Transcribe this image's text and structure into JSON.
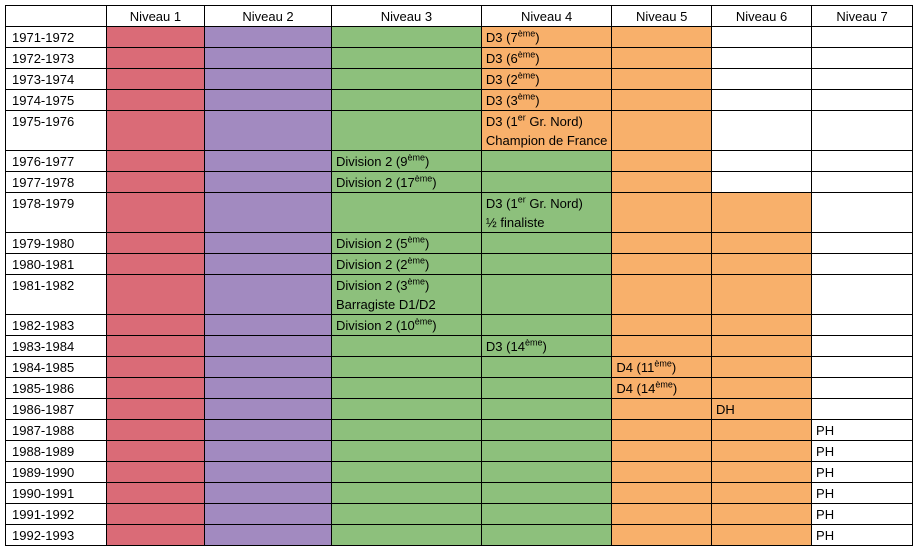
{
  "colors": {
    "niveau_1": "#DA6B77",
    "niveau_2": "#A28AC0",
    "niveau_3": "#8DC07C",
    "niveau_4": "#F8B06B",
    "empty": "#FFFFFF"
  },
  "headers": [
    "",
    "Niveau 1",
    "Niveau 2",
    "Niveau 3",
    "Niveau 4",
    "Niveau 5",
    "Niveau 6",
    "Niveau 7"
  ],
  "rows": [
    {
      "season": "1971-1972",
      "colors": [
        "niveau_1",
        "niveau_2",
        "niveau_3",
        "niveau_4",
        "niveau_4",
        "empty",
        "empty"
      ],
      "entry": {
        "col": 3,
        "lines": [
          {
            "text": "D3 (7",
            "sup": "ème",
            "after": ")"
          }
        ]
      }
    },
    {
      "season": "1972-1973",
      "colors": [
        "niveau_1",
        "niveau_2",
        "niveau_3",
        "niveau_4",
        "niveau_4",
        "empty",
        "empty"
      ],
      "entry": {
        "col": 3,
        "lines": [
          {
            "text": "D3 (6",
            "sup": "ème",
            "after": ")"
          }
        ]
      }
    },
    {
      "season": "1973-1974",
      "colors": [
        "niveau_1",
        "niveau_2",
        "niveau_3",
        "niveau_4",
        "niveau_4",
        "empty",
        "empty"
      ],
      "entry": {
        "col": 3,
        "lines": [
          {
            "text": "D3 (2",
            "sup": "ème",
            "after": ")"
          }
        ]
      }
    },
    {
      "season": "1974-1975",
      "colors": [
        "niveau_1",
        "niveau_2",
        "niveau_3",
        "niveau_4",
        "niveau_4",
        "empty",
        "empty"
      ],
      "entry": {
        "col": 3,
        "lines": [
          {
            "text": "D3 (3",
            "sup": "ème",
            "after": ")"
          }
        ]
      }
    },
    {
      "season": "1975-1976",
      "colors": [
        "niveau_1",
        "niveau_2",
        "niveau_3",
        "niveau_4",
        "niveau_4",
        "empty",
        "empty"
      ],
      "entry": {
        "col": 3,
        "lines": [
          {
            "text": "D3 (1",
            "sup": "er",
            "after": " Gr. Nord)"
          },
          {
            "text": "Champion de France",
            "sup": "",
            "after": ""
          }
        ]
      }
    },
    {
      "season": "1976-1977",
      "colors": [
        "niveau_1",
        "niveau_2",
        "niveau_3",
        "niveau_3",
        "niveau_4",
        "empty",
        "empty"
      ],
      "entry": {
        "col": 2,
        "lines": [
          {
            "text": "Division 2 (9",
            "sup": "ème",
            "after": ")"
          }
        ]
      }
    },
    {
      "season": "1977-1978",
      "colors": [
        "niveau_1",
        "niveau_2",
        "niveau_3",
        "niveau_3",
        "niveau_4",
        "empty",
        "empty"
      ],
      "entry": {
        "col": 2,
        "lines": [
          {
            "text": "Division 2 (17",
            "sup": "ème",
            "after": ")"
          }
        ]
      }
    },
    {
      "season": "1978-1979",
      "colors": [
        "niveau_1",
        "niveau_2",
        "niveau_3",
        "niveau_3",
        "niveau_4",
        "niveau_4",
        "empty"
      ],
      "entry": {
        "col": 3,
        "lines": [
          {
            "text": "D3 (1",
            "sup": "er",
            "after": " Gr. Nord)"
          },
          {
            "text": "½ finaliste",
            "sup": "",
            "after": ""
          }
        ]
      }
    },
    {
      "season": "1979-1980",
      "colors": [
        "niveau_1",
        "niveau_2",
        "niveau_3",
        "niveau_3",
        "niveau_4",
        "niveau_4",
        "empty"
      ],
      "entry": {
        "col": 2,
        "lines": [
          {
            "text": "Division 2 (5",
            "sup": "ème",
            "after": ")"
          }
        ]
      }
    },
    {
      "season": "1980-1981",
      "colors": [
        "niveau_1",
        "niveau_2",
        "niveau_3",
        "niveau_3",
        "niveau_4",
        "niveau_4",
        "empty"
      ],
      "entry": {
        "col": 2,
        "lines": [
          {
            "text": "Division 2 (2",
            "sup": "ème",
            "after": ")"
          }
        ]
      }
    },
    {
      "season": "1981-1982",
      "colors": [
        "niveau_1",
        "niveau_2",
        "niveau_3",
        "niveau_3",
        "niveau_4",
        "niveau_4",
        "empty"
      ],
      "entry": {
        "col": 2,
        "lines": [
          {
            "text": "Division 2 (3",
            "sup": "ème",
            "after": ")"
          },
          {
            "text": "Barragiste D1/D2",
            "sup": "",
            "after": ""
          }
        ]
      }
    },
    {
      "season": "1982-1983",
      "colors": [
        "niveau_1",
        "niveau_2",
        "niveau_3",
        "niveau_3",
        "niveau_4",
        "niveau_4",
        "empty"
      ],
      "entry": {
        "col": 2,
        "lines": [
          {
            "text": "Division 2 (10",
            "sup": "ème",
            "after": ")"
          }
        ]
      }
    },
    {
      "season": "1983-1984",
      "colors": [
        "niveau_1",
        "niveau_2",
        "niveau_3",
        "niveau_3",
        "niveau_4",
        "niveau_4",
        "empty"
      ],
      "entry": {
        "col": 3,
        "lines": [
          {
            "text": "D3 (14",
            "sup": "ème",
            "after": ")"
          }
        ]
      }
    },
    {
      "season": "1984-1985",
      "colors": [
        "niveau_1",
        "niveau_2",
        "niveau_3",
        "niveau_3",
        "niveau_4",
        "niveau_4",
        "empty"
      ],
      "entry": {
        "col": 4,
        "lines": [
          {
            "text": "D4 (11",
            "sup": "ème",
            "after": ")"
          }
        ]
      }
    },
    {
      "season": "1985-1986",
      "colors": [
        "niveau_1",
        "niveau_2",
        "niveau_3",
        "niveau_3",
        "niveau_4",
        "niveau_4",
        "empty"
      ],
      "entry": {
        "col": 4,
        "lines": [
          {
            "text": "D4 (14",
            "sup": "ème",
            "after": ")"
          }
        ]
      }
    },
    {
      "season": "1986-1987",
      "colors": [
        "niveau_1",
        "niveau_2",
        "niveau_3",
        "niveau_3",
        "niveau_4",
        "niveau_4",
        "empty"
      ],
      "entry": {
        "col": 5,
        "lines": [
          {
            "text": "DH",
            "sup": "",
            "after": ""
          }
        ]
      }
    },
    {
      "season": "1987-1988",
      "colors": [
        "niveau_1",
        "niveau_2",
        "niveau_3",
        "niveau_3",
        "niveau_4",
        "niveau_4",
        "empty"
      ],
      "entry": {
        "col": 6,
        "lines": [
          {
            "text": "PH",
            "sup": "",
            "after": ""
          }
        ]
      }
    },
    {
      "season": "1988-1989",
      "colors": [
        "niveau_1",
        "niveau_2",
        "niveau_3",
        "niveau_3",
        "niveau_4",
        "niveau_4",
        "empty"
      ],
      "entry": {
        "col": 6,
        "lines": [
          {
            "text": "PH",
            "sup": "",
            "after": ""
          }
        ]
      }
    },
    {
      "season": "1989-1990",
      "colors": [
        "niveau_1",
        "niveau_2",
        "niveau_3",
        "niveau_3",
        "niveau_4",
        "niveau_4",
        "empty"
      ],
      "entry": {
        "col": 6,
        "lines": [
          {
            "text": "PH",
            "sup": "",
            "after": ""
          }
        ]
      }
    },
    {
      "season": "1990-1991",
      "colors": [
        "niveau_1",
        "niveau_2",
        "niveau_3",
        "niveau_3",
        "niveau_4",
        "niveau_4",
        "empty"
      ],
      "entry": {
        "col": 6,
        "lines": [
          {
            "text": "PH",
            "sup": "",
            "after": ""
          }
        ]
      }
    },
    {
      "season": "1991-1992",
      "colors": [
        "niveau_1",
        "niveau_2",
        "niveau_3",
        "niveau_3",
        "niveau_4",
        "niveau_4",
        "empty"
      ],
      "entry": {
        "col": 6,
        "lines": [
          {
            "text": "PH",
            "sup": "",
            "after": ""
          }
        ]
      }
    },
    {
      "season": "1992-1993",
      "colors": [
        "niveau_1",
        "niveau_2",
        "niveau_3",
        "niveau_3",
        "niveau_4",
        "niveau_4",
        "empty"
      ],
      "entry": {
        "col": 6,
        "lines": [
          {
            "text": "PH",
            "sup": "",
            "after": ""
          }
        ]
      }
    }
  ]
}
